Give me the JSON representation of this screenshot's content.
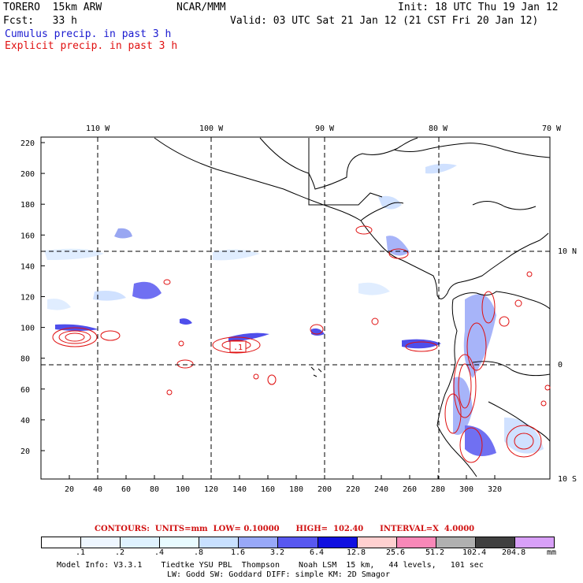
{
  "header": {
    "model": "TORERO  15km ARW",
    "center": "NCAR/MMM",
    "init": "Init: 18 UTC Thu 19 Jan 12",
    "fcst": "Fcst:   33 h",
    "valid": "Valid: 03 UTC Sat 21 Jan 12 (21 CST Fri 20 Jan 12)",
    "cumulus": "Cumulus precip. in past 3 h",
    "explicit": "Explicit precip. in past 3 h"
  },
  "colors": {
    "cumulus_text": "#1a1ad0",
    "explicit_text": "#e01010",
    "contour": "#e01010",
    "land": "#000000"
  },
  "top_axis": [
    "110 W",
    "100 W",
    "90 W",
    "80 W",
    "70 W"
  ],
  "right_axis": [
    "10 N",
    "0",
    "10 S"
  ],
  "y_ticks": [
    "220",
    "200",
    "180",
    "160",
    "140",
    "120",
    "100",
    "80",
    "60",
    "40",
    "20"
  ],
  "x_ticks": [
    "20",
    "40",
    "60",
    "80",
    "100",
    "120",
    "140",
    "160",
    "180",
    "200",
    "220",
    "240",
    "260",
    "280",
    "300",
    "320"
  ],
  "high_label": ".1",
  "contours_text": "CONTOURS:  UNITS=mm  LOW= 0.10000      HIGH=  102.40      INTERVAL=X  4.0000",
  "colorbar": {
    "colors": [
      "#ffffff",
      "#eef6ff",
      "#dff2ff",
      "#e8fbff",
      "#c8e0ff",
      "#98a8f8",
      "#5858f0",
      "#1010e0",
      "#ffd0d0",
      "#f888b8",
      "#b0b0b0",
      "#404040",
      "#d8a0f8"
    ],
    "labels": [
      ".1",
      ".2",
      ".4",
      ".8",
      "1.6",
      "3.2",
      "6.4",
      "12.8",
      "25.6",
      "51.2",
      "102.4",
      "204.8",
      "mm"
    ]
  },
  "footer": {
    "line1": "Model Info: V3.3.1    Tiedtke YSU PBL  Thompson    Noah LSM  15 km,   44 levels,   101 sec",
    "line2": "LW: Godd SW: Goddard DIFF: simple KM: 2D Smagor"
  }
}
